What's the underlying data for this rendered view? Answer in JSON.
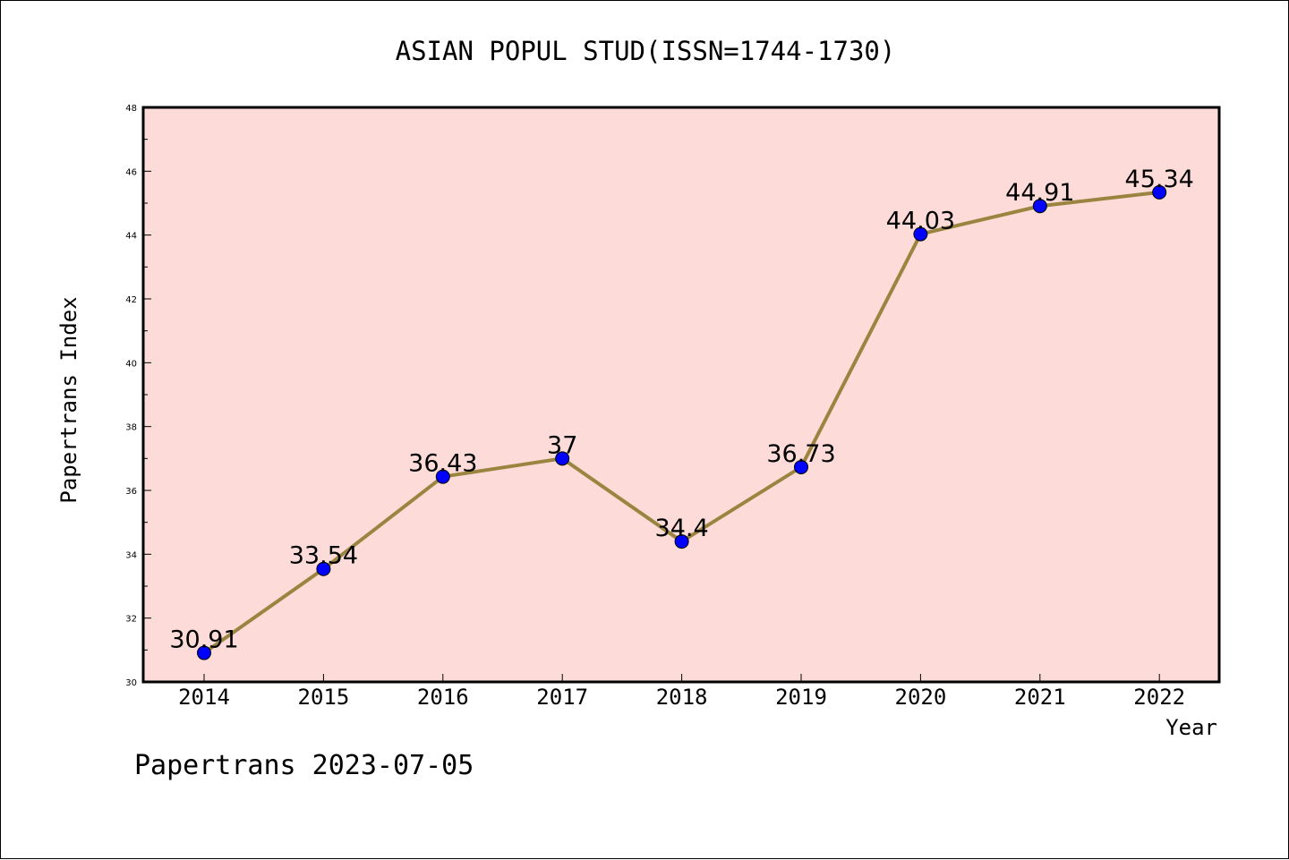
{
  "chart_data": {
    "type": "line",
    "title": "ASIAN POPUL STUD(ISSN=1744-1730)",
    "xlabel": "Year",
    "ylabel": "Papertrans Index",
    "categories": [
      "2014",
      "2015",
      "2016",
      "2017",
      "2018",
      "2019",
      "2020",
      "2021",
      "2022"
    ],
    "series": [
      {
        "values": [
          30.91,
          33.54,
          36.43,
          37,
          34.4,
          36.73,
          44.03,
          44.91,
          45.34
        ],
        "labels": [
          "30.91",
          "33.54",
          "36.43",
          "37",
          "34.4",
          "36.73",
          "44.03",
          "44.91",
          "45.34"
        ]
      }
    ],
    "ylim": [
      30,
      48
    ],
    "yticks": [
      "30",
      "32",
      "34",
      "36",
      "38",
      "40",
      "42",
      "44",
      "46",
      "48"
    ],
    "grid": false,
    "colors": {
      "plot_background": "#fddbd8",
      "line": "#9a8540",
      "marker": "#0000ff"
    }
  },
  "footer": "Papertrans 2023-07-05"
}
